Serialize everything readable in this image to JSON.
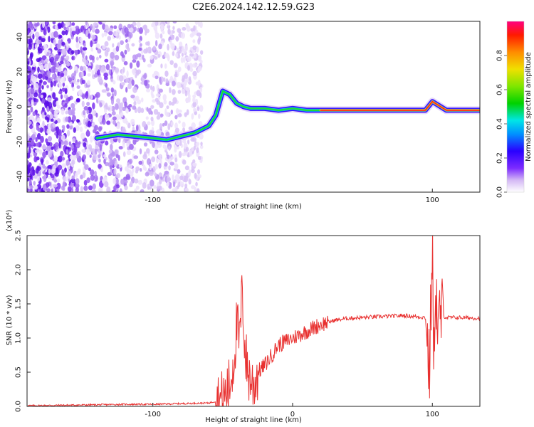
{
  "title": "C2E6.2024.142.12.59.G23",
  "chart_data": [
    {
      "type": "heatmap",
      "xlabel": "Height of straight line (km)",
      "ylabel": "Frequency (Hz)",
      "xlim": [
        -190,
        134
      ],
      "ylim": [
        -49,
        49
      ],
      "xticks": [
        -100,
        100
      ],
      "yticks": [
        -40,
        -20,
        0,
        20,
        40
      ],
      "colorbar": {
        "label": "Normalized spectral amplitude",
        "range": [
          0,
          1
        ],
        "ticks": [
          0.0,
          0.2,
          0.4,
          0.6,
          0.8
        ]
      },
      "dominant_frequency_track": {
        "x": [
          -140,
          -125,
          -100,
          -90,
          -80,
          -70,
          -60,
          -55,
          -50,
          -45,
          -40,
          -35,
          -30,
          -20,
          -10,
          0,
          10,
          20,
          40,
          60,
          80,
          95,
          100,
          110,
          134
        ],
        "y": [
          -18,
          -16,
          -18,
          -19,
          -17,
          -15,
          -11,
          -5,
          9,
          7,
          2,
          0,
          -1,
          -1,
          -2,
          -1,
          -2,
          -2,
          -2,
          -2,
          -2,
          -2,
          3,
          -2,
          -2
        ]
      }
    },
    {
      "type": "line",
      "xlabel": "Height of straight line (km)",
      "ylabel": "SNR (10 * v/v)",
      "y_multiplier": "(x10⁴)",
      "xlim": [
        -190,
        134
      ],
      "ylim": [
        0,
        2.5
      ],
      "xticks": [
        -100,
        0,
        100
      ],
      "yticks": [
        0.0,
        0.5,
        1.0,
        1.5,
        2.0,
        2.5
      ],
      "color": "#e8302f",
      "series": [
        {
          "x": [
            -190,
            -150,
            -120,
            -100,
            -80,
            -60,
            -50,
            -45,
            -42,
            -40,
            -38,
            -36,
            -34,
            -32,
            -30,
            -28,
            -25,
            -20,
            -15,
            -10,
            -5,
            0,
            5,
            10,
            15,
            20,
            30,
            40,
            60,
            80,
            95,
            98,
            100,
            101,
            102,
            104,
            106,
            110,
            120,
            134
          ],
          "y": [
            0.01,
            0.02,
            0.03,
            0.03,
            0.04,
            0.05,
            0.1,
            0.3,
            0.7,
            1.2,
            0.9,
            1.7,
            0.8,
            0.5,
            0.4,
            0.3,
            0.5,
            0.6,
            0.75,
            0.9,
            0.95,
            1.0,
            1.05,
            1.1,
            1.15,
            1.2,
            1.26,
            1.29,
            1.31,
            1.33,
            1.3,
            0.5,
            2.5,
            0.2,
            1.9,
            1.1,
            1.35,
            1.3,
            1.3,
            1.29
          ]
        }
      ]
    }
  ]
}
